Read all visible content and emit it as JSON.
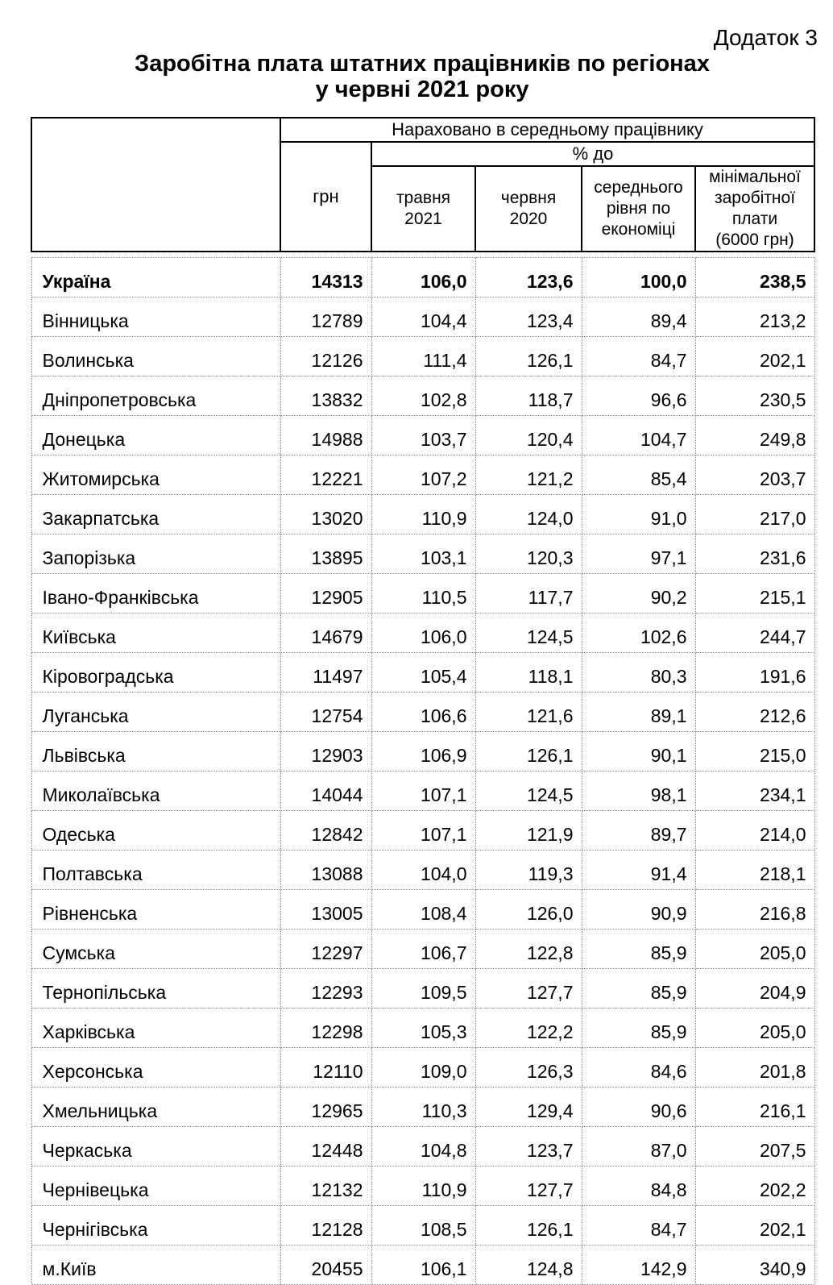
{
  "page": {
    "appendix_label": "Додаток 3",
    "title_line1": "Заробітна плата штатних працівників по регіонах",
    "title_line2": "у червні 2021 року"
  },
  "table": {
    "headers": {
      "accrued_group": "Нараховано в середньому працівнику",
      "uah": "грн",
      "percent_group": "% до",
      "col_may_2021": "травня\n2021",
      "col_june_2020": "червня\n2020",
      "col_avg_economy": "середнього\nрівня по\nекономіці",
      "col_min_wage": "мінімальної\nзаробітної\nплати\n(6000 грн)"
    },
    "rows": [
      {
        "region": "Україна",
        "uah": "14313",
        "to_may_2021": "106,0",
        "to_june_2020": "123,6",
        "to_avg_economy": "100,0",
        "to_min_wage": "238,5",
        "bold": true
      },
      {
        "region": "Вінницька",
        "uah": "12789",
        "to_may_2021": "104,4",
        "to_june_2020": "123,4",
        "to_avg_economy": "89,4",
        "to_min_wage": "213,2",
        "bold": false
      },
      {
        "region": "Волинська",
        "uah": "12126",
        "to_may_2021": "111,4",
        "to_june_2020": "126,1",
        "to_avg_economy": "84,7",
        "to_min_wage": "202,1",
        "bold": false
      },
      {
        "region": "Дніпропетровська",
        "uah": "13832",
        "to_may_2021": "102,8",
        "to_june_2020": "118,7",
        "to_avg_economy": "96,6",
        "to_min_wage": "230,5",
        "bold": false
      },
      {
        "region": "Донецька",
        "uah": "14988",
        "to_may_2021": "103,7",
        "to_june_2020": "120,4",
        "to_avg_economy": "104,7",
        "to_min_wage": "249,8",
        "bold": false
      },
      {
        "region": "Житомирська",
        "uah": "12221",
        "to_may_2021": "107,2",
        "to_june_2020": "121,2",
        "to_avg_economy": "85,4",
        "to_min_wage": "203,7",
        "bold": false
      },
      {
        "region": "Закарпатська",
        "uah": "13020",
        "to_may_2021": "110,9",
        "to_june_2020": "124,0",
        "to_avg_economy": "91,0",
        "to_min_wage": "217,0",
        "bold": false
      },
      {
        "region": "Запорізька",
        "uah": "13895",
        "to_may_2021": "103,1",
        "to_june_2020": "120,3",
        "to_avg_economy": "97,1",
        "to_min_wage": "231,6",
        "bold": false
      },
      {
        "region": "Івано-Франківська",
        "uah": "12905",
        "to_may_2021": "110,5",
        "to_june_2020": "117,7",
        "to_avg_economy": "90,2",
        "to_min_wage": "215,1",
        "bold": false
      },
      {
        "region": "Київська",
        "uah": "14679",
        "to_may_2021": "106,0",
        "to_june_2020": "124,5",
        "to_avg_economy": "102,6",
        "to_min_wage": "244,7",
        "bold": false
      },
      {
        "region": "Кіровоградська",
        "uah": "11497",
        "to_may_2021": "105,4",
        "to_june_2020": "118,1",
        "to_avg_economy": "80,3",
        "to_min_wage": "191,6",
        "bold": false
      },
      {
        "region": "Луганська",
        "uah": "12754",
        "to_may_2021": "106,6",
        "to_june_2020": "121,6",
        "to_avg_economy": "89,1",
        "to_min_wage": "212,6",
        "bold": false
      },
      {
        "region": "Львівська",
        "uah": "12903",
        "to_may_2021": "106,9",
        "to_june_2020": "126,1",
        "to_avg_economy": "90,1",
        "to_min_wage": "215,0",
        "bold": false
      },
      {
        "region": "Миколаївська",
        "uah": "14044",
        "to_may_2021": "107,1",
        "to_june_2020": "124,5",
        "to_avg_economy": "98,1",
        "to_min_wage": "234,1",
        "bold": false
      },
      {
        "region": "Одеська",
        "uah": "12842",
        "to_may_2021": "107,1",
        "to_june_2020": "121,9",
        "to_avg_economy": "89,7",
        "to_min_wage": "214,0",
        "bold": false
      },
      {
        "region": "Полтавська",
        "uah": "13088",
        "to_may_2021": "104,0",
        "to_june_2020": "119,3",
        "to_avg_economy": "91,4",
        "to_min_wage": "218,1",
        "bold": false
      },
      {
        "region": "Рівненська",
        "uah": "13005",
        "to_may_2021": "108,4",
        "to_june_2020": "126,0",
        "to_avg_economy": "90,9",
        "to_min_wage": "216,8",
        "bold": false
      },
      {
        "region": "Сумська",
        "uah": "12297",
        "to_may_2021": "106,7",
        "to_june_2020": "122,8",
        "to_avg_economy": "85,9",
        "to_min_wage": "205,0",
        "bold": false
      },
      {
        "region": "Тернопільська",
        "uah": "12293",
        "to_may_2021": "109,5",
        "to_june_2020": "127,7",
        "to_avg_economy": "85,9",
        "to_min_wage": "204,9",
        "bold": false
      },
      {
        "region": "Харківська",
        "uah": "12298",
        "to_may_2021": "105,3",
        "to_june_2020": "122,2",
        "to_avg_economy": "85,9",
        "to_min_wage": "205,0",
        "bold": false
      },
      {
        "region": "Херсонська",
        "uah": "12110",
        "to_may_2021": "109,0",
        "to_june_2020": "126,3",
        "to_avg_economy": "84,6",
        "to_min_wage": "201,8",
        "bold": false
      },
      {
        "region": "Хмельницька",
        "uah": "12965",
        "to_may_2021": "110,3",
        "to_june_2020": "129,4",
        "to_avg_economy": "90,6",
        "to_min_wage": "216,1",
        "bold": false
      },
      {
        "region": "Черкаська",
        "uah": "12448",
        "to_may_2021": "104,8",
        "to_june_2020": "123,7",
        "to_avg_economy": "87,0",
        "to_min_wage": "207,5",
        "bold": false
      },
      {
        "region": "Чернівецька",
        "uah": "12132",
        "to_may_2021": "110,9",
        "to_june_2020": "127,7",
        "to_avg_economy": "84,8",
        "to_min_wage": "202,2",
        "bold": false
      },
      {
        "region": "Чернігівська",
        "uah": "12128",
        "to_may_2021": "108,5",
        "to_june_2020": "126,1",
        "to_avg_economy": "84,7",
        "to_min_wage": "202,1",
        "bold": false
      },
      {
        "region": "м.Київ",
        "uah": "20455",
        "to_may_2021": "106,1",
        "to_june_2020": "124,8",
        "to_avg_economy": "142,9",
        "to_min_wage": "340,9",
        "bold": false
      }
    ]
  }
}
